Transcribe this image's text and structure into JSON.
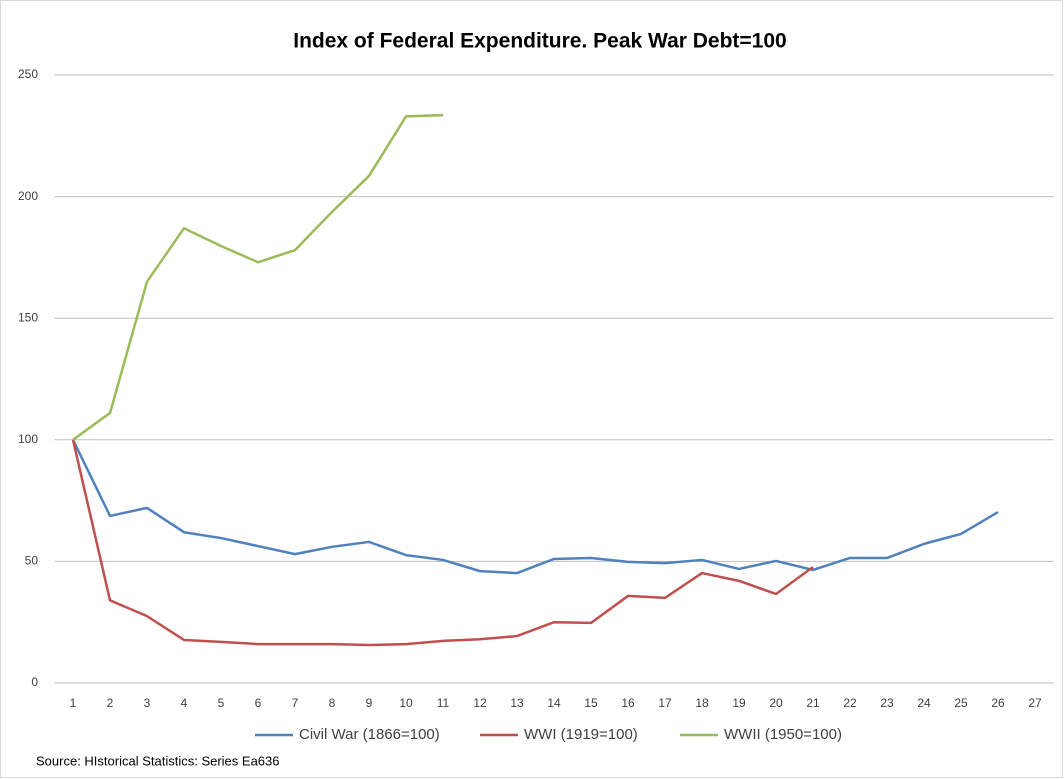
{
  "chart_data": {
    "type": "line",
    "title": "Index of Federal Expenditure.  Peak War Debt=100",
    "source": "Source: HIstorical Statistics: Series Ea636",
    "categories": [
      "1",
      "2",
      "3",
      "4",
      "5",
      "6",
      "7",
      "8",
      "9",
      "10",
      "11",
      "12",
      "13",
      "14",
      "15",
      "16",
      "17",
      "18",
      "19",
      "20",
      "21",
      "22",
      "23",
      "24",
      "25",
      "26",
      "27"
    ],
    "series": [
      {
        "name": "Civil War (1866=100)",
        "color": "#4f81bd",
        "values": [
          100,
          68.7,
          72,
          62,
          59.6,
          56.3,
          53,
          56,
          58,
          52.6,
          50.6,
          46,
          45.2,
          51,
          51.4,
          49.8,
          49.3,
          50.6,
          46.9,
          50.2,
          46.5,
          51.4,
          51.4,
          57.2,
          61.3,
          70.3,
          null
        ]
      },
      {
        "name": "WWI (1919=100)",
        "color": "#c0504d",
        "values": [
          100,
          34,
          27.5,
          17.7,
          16.9,
          16,
          16,
          16,
          15.6,
          16,
          17.3,
          18,
          19.3,
          25,
          24.7,
          35.8,
          35,
          45.2,
          42,
          36.6,
          47.7,
          null,
          null,
          null,
          null,
          null,
          null
        ]
      },
      {
        "name": "WWII (1950=100)",
        "color": "#9bbb59",
        "values": [
          100,
          111,
          165,
          187,
          179.7,
          173,
          178,
          193.7,
          208.5,
          233,
          233.5,
          null,
          null,
          null,
          null,
          null,
          null,
          null,
          null,
          null,
          null,
          null,
          null,
          null,
          null,
          null,
          null
        ]
      }
    ],
    "ylim": [
      0,
      250
    ],
    "yticks": [
      0,
      50,
      100,
      150,
      200,
      250
    ],
    "grid": true,
    "legend": "bottom"
  }
}
